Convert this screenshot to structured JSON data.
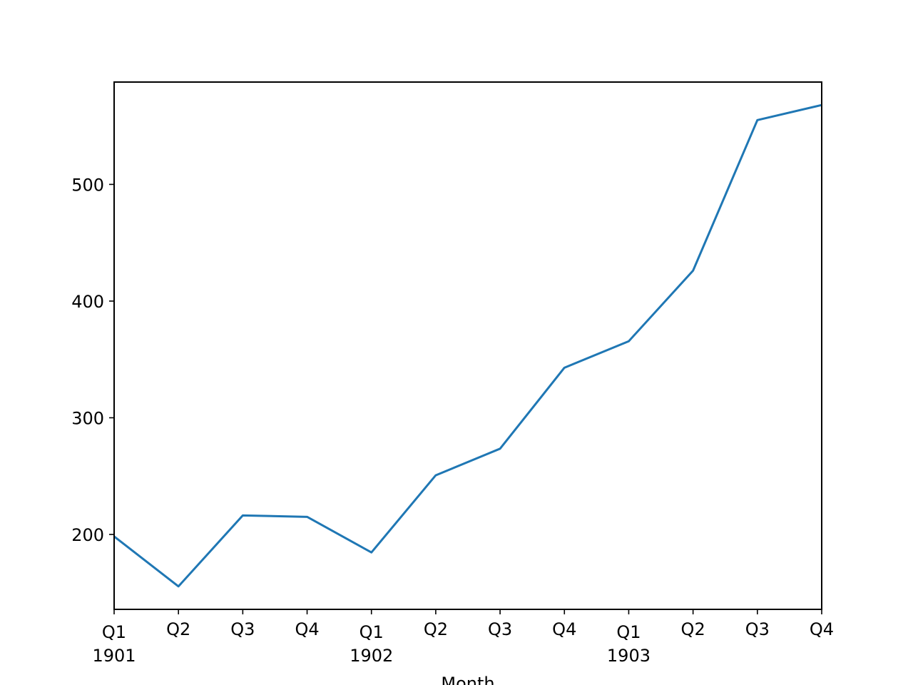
{
  "chart_data": {
    "type": "line",
    "x": [
      "1901Q1",
      "1901Q2",
      "1901Q3",
      "1901Q4",
      "1902Q1",
      "1902Q2",
      "1902Q3",
      "1902Q4",
      "1903Q1",
      "1903Q2",
      "1903Q3",
      "1903Q4"
    ],
    "x_tick_labels": [
      {
        "quarter": "Q1",
        "year": "1901"
      },
      {
        "quarter": "Q2",
        "year": ""
      },
      {
        "quarter": "Q3",
        "year": ""
      },
      {
        "quarter": "Q4",
        "year": ""
      },
      {
        "quarter": "Q1",
        "year": "1902"
      },
      {
        "quarter": "Q2",
        "year": ""
      },
      {
        "quarter": "Q3",
        "year": ""
      },
      {
        "quarter": "Q4",
        "year": ""
      },
      {
        "quarter": "Q1",
        "year": "1903"
      },
      {
        "quarter": "Q2",
        "year": ""
      },
      {
        "quarter": "Q3",
        "year": ""
      },
      {
        "quarter": "Q4",
        "year": ""
      }
    ],
    "series": [
      {
        "values": [
          198.3,
          155.5,
          216.3,
          215.1,
          184.6,
          250.7,
          273.5,
          342.9,
          365.6,
          426.1,
          555.1,
          568.0
        ],
        "color": "#1f77b4"
      }
    ],
    "xlabel": "Month",
    "ylabel": "",
    "title": "",
    "ylim": [
      135.8,
      587.7
    ],
    "yticks": [
      200,
      300,
      400,
      500
    ],
    "grid": false,
    "legend": "none"
  }
}
